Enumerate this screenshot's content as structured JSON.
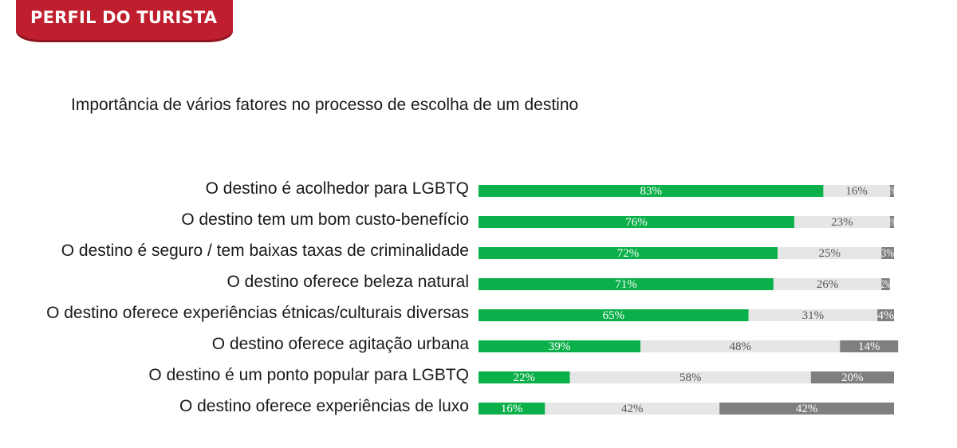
{
  "header": {
    "badge_text": "PERFIL DO TURISTA"
  },
  "colors": {
    "badge": "#bf1e2e",
    "green": "#0cb04a",
    "light_gray": "#e6e6e6",
    "dark_gray": "#7f7f7f"
  },
  "chart_data": {
    "type": "bar",
    "orientation": "horizontal",
    "stacked": true,
    "title": "Importância de vários fatores no processo de escolha de um destino",
    "categories": [
      "O destino é acolhedor para LGBTQ",
      "O destino tem um bom custo-benefício",
      "O destino é seguro / tem baixas taxas de criminalidade",
      "O destino oferece beleza natural",
      "O destino oferece experiências étnicas/culturais diversas",
      "O destino oferece agitação urbana",
      "O destino é um ponto popular para LGBTQ",
      "O destino oferece experiências de luxo"
    ],
    "series": [
      {
        "name": "series-1",
        "color": "#0cb04a",
        "label_color": "#ffffff",
        "values": [
          83,
          76,
          72,
          71,
          65,
          39,
          22,
          16
        ],
        "labels": [
          "83%",
          "76%",
          "72%",
          "71%",
          "65%",
          "39%",
          "22%",
          "16%"
        ]
      },
      {
        "name": "series-2",
        "color": "#e6e6e6",
        "label_color": "#555555",
        "values": [
          16,
          23,
          25,
          26,
          31,
          48,
          58,
          42
        ],
        "labels": [
          "16%",
          "23%",
          "25%",
          "26%",
          "31%",
          "48%",
          "58%",
          "42%"
        ]
      },
      {
        "name": "series-3",
        "color": "#7f7f7f",
        "label_color": "#ffffff",
        "values": [
          1,
          1,
          3,
          2,
          4,
          14,
          20,
          42
        ],
        "labels": [
          "1%",
          "1%",
          "3%",
          "2%",
          "4%",
          "14%",
          "20%",
          "42%"
        ]
      }
    ],
    "xlim": [
      0,
      100
    ],
    "grid": false,
    "legend": "none"
  }
}
